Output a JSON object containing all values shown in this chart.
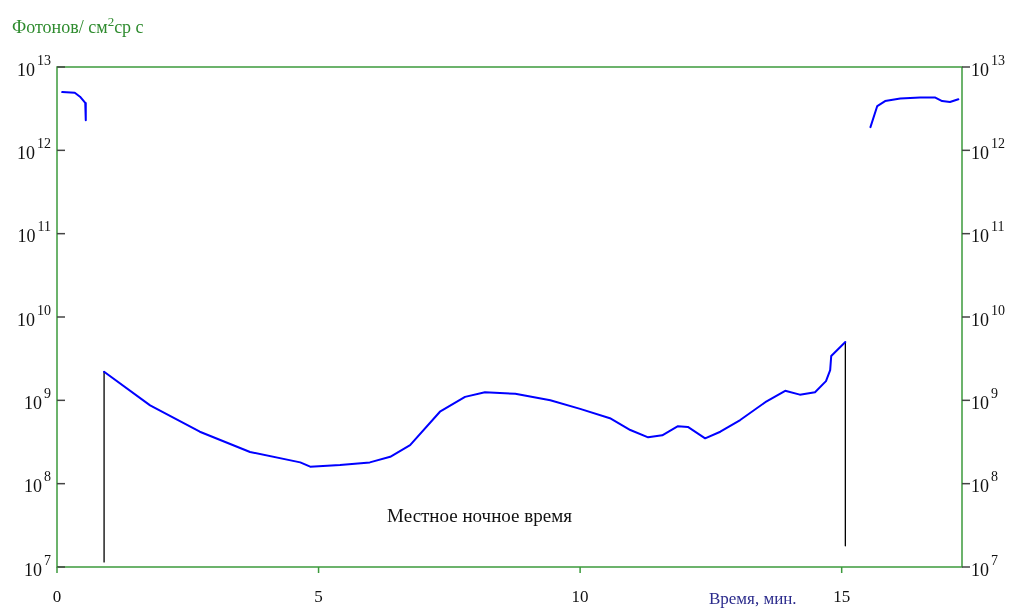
{
  "chart_data": {
    "type": "line",
    "ylabel": "Фотонов/ см$^{2}$ср с",
    "xlabel": "Время, мин.",
    "annotations": [
      "Местное ночное время"
    ],
    "log": "y",
    "grid": false,
    "legend": false,
    "marker": "none",
    "line_style": "solid",
    "xlim": [
      0,
      17.3
    ],
    "xticks": [
      0,
      5,
      10,
      15
    ],
    "ylim": [
      10000000.0,
      10000000000000.0
    ],
    "yticks": [
      {
        "value": 10000000.0,
        "label": "10$^{7}$"
      },
      {
        "value": 100000000.0,
        "label": "10$^{8}$"
      },
      {
        "value": 1000000000.0,
        "label": "10$^{9}$"
      },
      {
        "value": 10000000000.0,
        "label": "10$^{10}$"
      },
      {
        "value": 100000000000.0,
        "label": "10$^{11}$"
      },
      {
        "value": 1000000000000.0,
        "label": "10$^{12}$"
      },
      {
        "value": 10000000000000.0,
        "label": "10$^{13}$"
      }
    ],
    "series": [
      {
        "color": "#0000ff",
        "x": [
          0.1,
          0.34,
          0.44,
          0.54,
          0.55,
          0.7,
          0.9,
          1.78,
          2.73,
          3.69,
          4.65,
          4.84,
          5.41,
          5.98,
          6.37,
          6.75,
          7.32,
          7.8,
          8.18,
          8.76,
          9.43,
          10.0,
          10.57,
          10.96,
          11.3,
          11.57,
          11.87,
          12.06,
          12.39,
          12.68,
          13.06,
          13.54,
          13.92,
          14.2,
          14.49,
          14.7,
          14.78,
          14.8,
          15.07,
          15.3,
          15.55,
          15.68,
          15.83,
          16.12,
          16.5,
          16.79,
          16.92,
          17.07,
          17.23
        ],
        "values": [
          5000000000000.0,
          4900000000000.0,
          4400000000000.0,
          3700000000000.0,
          2300000000000.0,
          null,
          2200000000.0,
          870000000.0,
          420000000.0,
          240000000.0,
          180000000.0,
          160000000.0,
          167000000.0,
          180000000.0,
          210000000.0,
          290000000.0,
          730000000.0,
          1100000000.0,
          1250000000.0,
          1200000000.0,
          1000000000.0,
          790000000.0,
          610000000.0,
          440000000.0,
          360000000.0,
          380000000.0,
          490000000.0,
          480000000.0,
          350000000.0,
          420000000.0,
          580000000.0,
          950000000.0,
          1300000000.0,
          1170000000.0,
          1250000000.0,
          1700000000.0,
          2300000000.0,
          3400000000.0,
          5000000000.0,
          null,
          1900000000000.0,
          3400000000000.0,
          3900000000000.0,
          4200000000000.0,
          4300000000000.0,
          4300000000000.0,
          3900000000000.0,
          3800000000000.0,
          4100000000000.0
        ]
      },
      {
        "color": "#000000",
        "x": [
          0.9,
          0.9
        ],
        "values": [
          11500000.0,
          2200000000.0
        ]
      },
      {
        "color": "#000000",
        "x": [
          15.07,
          15.07
        ],
        "values": [
          18000000.0,
          5000000000.0
        ]
      }
    ]
  }
}
